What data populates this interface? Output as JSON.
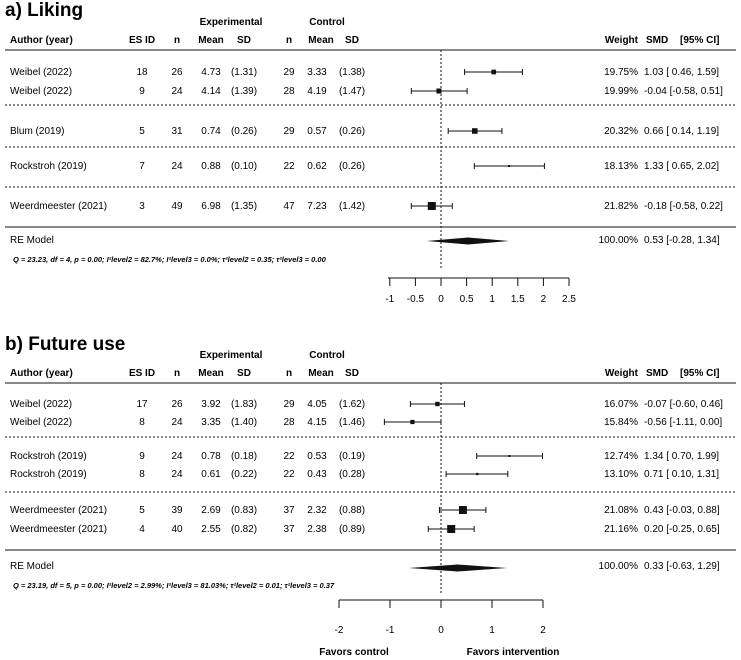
{
  "chart_data": [
    {
      "type": "forest",
      "title": "a) Liking",
      "group_headers": {
        "experimental": "Experimental",
        "control": "Control"
      },
      "columns": {
        "author": "Author (year)",
        "es_id": "ES ID",
        "n_exp": "n",
        "mean_exp": "Mean",
        "sd_exp": "SD",
        "n_ctrl": "n",
        "mean_ctrl": "Mean",
        "sd_ctrl": "SD",
        "weight": "Weight",
        "smd": "SMD",
        "ci": "[95% CI]"
      },
      "studies": [
        {
          "author": "Weibel (2022)",
          "es_id": "18",
          "n_exp": "26",
          "mean_exp": "4.73",
          "sd_exp": "(1.31)",
          "n_ctrl": "29",
          "mean_ctrl": "3.33",
          "sd_ctrl": "(1.38)",
          "weight": "19.75%",
          "smd_text": "1.03 [ 0.46, 1.59]",
          "smd": 1.03,
          "lo": 0.46,
          "hi": 1.59,
          "w": 19.75
        },
        {
          "author": "Weibel (2022)",
          "es_id": "9",
          "n_exp": "24",
          "mean_exp": "4.14",
          "sd_exp": "(1.39)",
          "n_ctrl": "28",
          "mean_ctrl": "4.19",
          "sd_ctrl": "(1.47)",
          "weight": "19.99%",
          "smd_text": "-0.04 [-0.58, 0.51]",
          "smd": -0.04,
          "lo": -0.58,
          "hi": 0.51,
          "w": 19.99
        },
        {
          "author": "Blum (2019)",
          "es_id": "5",
          "n_exp": "31",
          "mean_exp": "0.74",
          "sd_exp": "(0.26)",
          "n_ctrl": "29",
          "mean_ctrl": "0.57",
          "sd_ctrl": "(0.26)",
          "weight": "20.32%",
          "smd_text": "0.66 [ 0.14, 1.19]",
          "smd": 0.66,
          "lo": 0.14,
          "hi": 1.19,
          "w": 20.32
        },
        {
          "author": "Rockstroh (2019)",
          "es_id": "7",
          "n_exp": "24",
          "mean_exp": "0.88",
          "sd_exp": "(0.10)",
          "n_ctrl": "22",
          "mean_ctrl": "0.62",
          "sd_ctrl": "(0.26)",
          "weight": "18.13%",
          "smd_text": "1.33 [ 0.65, 2.02]",
          "smd": 1.33,
          "lo": 0.65,
          "hi": 2.02,
          "w": 18.13
        },
        {
          "author": "Weerdmeester (2021)",
          "es_id": "3",
          "n_exp": "49",
          "mean_exp": "6.98",
          "sd_exp": "(1.35)",
          "n_ctrl": "47",
          "mean_ctrl": "7.23",
          "sd_ctrl": "(1.42)",
          "weight": "21.82%",
          "smd_text": "-0.18 [-0.58, 0.22]",
          "smd": -0.18,
          "lo": -0.58,
          "hi": 0.22,
          "w": 21.82
        }
      ],
      "model": {
        "label": "RE Model",
        "weight": "100.00%",
        "smd_text": "0.53 [-0.28, 1.34]",
        "smd": 0.53,
        "lo": -0.28,
        "hi": 1.34
      },
      "stats_text": "Q = 23.23, df = 4, p = 0.00; I²level2 = 82.7%;  I²level3 = 0.0%; τ²level2 = 0.35; τ²level3 = 0.00",
      "x_ticks": [
        -1,
        -0.5,
        0,
        0.5,
        1,
        1.5,
        2,
        2.5
      ],
      "x_tick_labels": [
        "-1",
        "-0.5",
        "0",
        "0.5",
        "1",
        "1.5",
        "2",
        "2.5"
      ],
      "xlim": [
        -1,
        2.5
      ],
      "xlabel_left": "",
      "xlabel_right": ""
    },
    {
      "type": "forest",
      "title": "b) Future use",
      "group_headers": {
        "experimental": "Experimental",
        "control": "Control"
      },
      "columns": {
        "author": "Author (year)",
        "es_id": "ES ID",
        "n_exp": "n",
        "mean_exp": "Mean",
        "sd_exp": "SD",
        "n_ctrl": "n",
        "mean_ctrl": "Mean",
        "sd_ctrl": "SD",
        "weight": "Weight",
        "smd": "SMD",
        "ci": "[95% CI]"
      },
      "studies": [
        {
          "author": "Weibel (2022)",
          "es_id": "17",
          "n_exp": "26",
          "mean_exp": "3.92",
          "sd_exp": "(1.83)",
          "n_ctrl": "29",
          "mean_ctrl": "4.05",
          "sd_ctrl": "(1.62)",
          "weight": "16.07%",
          "smd_text": "-0.07 [-0.60, 0.46]",
          "smd": -0.07,
          "lo": -0.6,
          "hi": 0.46,
          "w": 16.07
        },
        {
          "author": "Weibel (2022)",
          "es_id": "8",
          "n_exp": "24",
          "mean_exp": "3.35",
          "sd_exp": "(1.40)",
          "n_ctrl": "28",
          "mean_ctrl": "4.15",
          "sd_ctrl": "(1.46)",
          "weight": "15.84%",
          "smd_text": "-0.56 [-1.11, 0.00]",
          "smd": -0.56,
          "lo": -1.11,
          "hi": 0.0,
          "w": 15.84
        },
        {
          "author": "Rockstroh (2019)",
          "es_id": "9",
          "n_exp": "24",
          "mean_exp": "0.78",
          "sd_exp": "(0.18)",
          "n_ctrl": "22",
          "mean_ctrl": "0.53",
          "sd_ctrl": "(0.19)",
          "weight": "12.74%",
          "smd_text": "1.34 [ 0.70, 1.99]",
          "smd": 1.34,
          "lo": 0.7,
          "hi": 1.99,
          "w": 12.74
        },
        {
          "author": "Rockstroh (2019)",
          "es_id": "8",
          "n_exp": "24",
          "mean_exp": "0.61",
          "sd_exp": "(0.22)",
          "n_ctrl": "22",
          "mean_ctrl": "0.43",
          "sd_ctrl": "(0.28)",
          "weight": "13.10%",
          "smd_text": "0.71 [ 0.10, 1.31]",
          "smd": 0.71,
          "lo": 0.1,
          "hi": 1.31,
          "w": 13.1
        },
        {
          "author": "Weerdmeester (2021)",
          "es_id": "5",
          "n_exp": "39",
          "mean_exp": "2.69",
          "sd_exp": "(0.83)",
          "n_ctrl": "37",
          "mean_ctrl": "2.32",
          "sd_ctrl": "(0.88)",
          "weight": "21.08%",
          "smd_text": "0.43 [-0.03, 0.88]",
          "smd": 0.43,
          "lo": -0.03,
          "hi": 0.88,
          "w": 21.08
        },
        {
          "author": "Weerdmeester (2021)",
          "es_id": "4",
          "n_exp": "40",
          "mean_exp": "2.55",
          "sd_exp": "(0.82)",
          "n_ctrl": "37",
          "mean_ctrl": "2.38",
          "sd_ctrl": "(0.89)",
          "weight": "21.16%",
          "smd_text": "0.20 [-0.25, 0.65]",
          "smd": 0.2,
          "lo": -0.25,
          "hi": 0.65,
          "w": 21.16
        }
      ],
      "model": {
        "label": "RE Model",
        "weight": "100.00%",
        "smd_text": "0.33 [-0.63, 1.29]",
        "smd": 0.33,
        "lo": -0.63,
        "hi": 1.29
      },
      "stats_text": "Q = 23.19, df = 5, p = 0.00; I²level2 = 2.99%; I²level3 = 81.03%; τ²level2 = 0.01; τ²level3 = 0.37",
      "x_ticks": [
        -2,
        -1,
        0,
        1,
        2
      ],
      "x_tick_labels": [
        "-2",
        "-1",
        "0",
        "1",
        "2"
      ],
      "xlim": [
        -2,
        2
      ],
      "xlabel_left": "Favors control",
      "xlabel_right": "Favors intervention"
    }
  ]
}
